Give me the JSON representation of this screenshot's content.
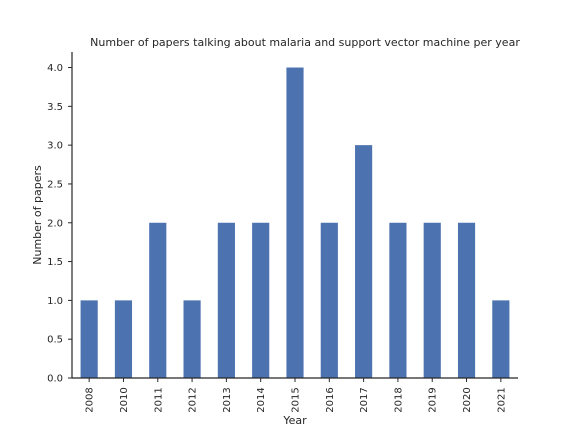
{
  "chart_data": {
    "type": "bar",
    "title": "Number of papers talking about malaria and support vector machine per year",
    "xlabel": "Year",
    "ylabel": "Number of papers",
    "categories": [
      "2008",
      "2010",
      "2011",
      "2012",
      "2013",
      "2014",
      "2015",
      "2016",
      "2017",
      "2018",
      "2019",
      "2020",
      "2021"
    ],
    "values": [
      1,
      1,
      2,
      1,
      2,
      2,
      4,
      2,
      3,
      2,
      2,
      2,
      1
    ],
    "ylim": [
      0,
      4.2
    ],
    "yticks": [
      "0.0",
      "0.5",
      "1.0",
      "1.5",
      "2.0",
      "2.5",
      "3.0",
      "3.5",
      "4.0"
    ],
    "grid": false,
    "colors": {
      "bar": "#4c72b0",
      "axis": "#262626"
    }
  }
}
